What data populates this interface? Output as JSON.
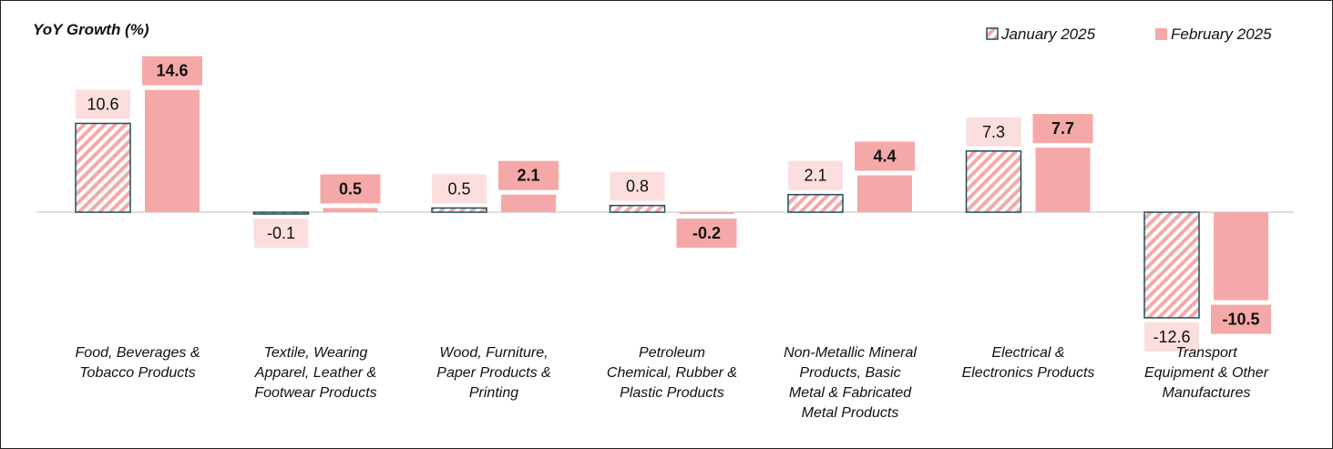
{
  "chart_data": {
    "type": "bar",
    "ylabel": "YoY Growth (%)",
    "title": "",
    "legend_position": "top-right",
    "categories": [
      [
        "Food, Beverages &",
        "Tobacco Products"
      ],
      [
        "Textile, Wearing",
        "Apparel, Leather &",
        "Footwear Products"
      ],
      [
        "Wood, Furniture,",
        "Paper Products &",
        "Printing"
      ],
      [
        "Petroleum",
        "Chemical, Rubber &",
        "Plastic Products"
      ],
      [
        "Non-Metallic Mineral",
        "Products, Basic",
        "Metal & Fabricated",
        "Metal Products"
      ],
      [
        "Electrical &",
        "Electronics Products"
      ],
      [
        "Transport",
        "Equipment & Other",
        "Manufactures"
      ]
    ],
    "series": [
      {
        "name": "January 2025",
        "values": [
          10.6,
          -0.1,
          0.5,
          0.8,
          2.1,
          7.3,
          -12.6
        ],
        "labels": [
          "10.6",
          "-0.1",
          "0.5",
          "0.8",
          "2.1",
          "7.3",
          "-12.6"
        ]
      },
      {
        "name": "February 2025",
        "values": [
          14.6,
          0.5,
          2.1,
          -0.2,
          4.4,
          7.7,
          -10.5
        ],
        "labels": [
          "14.6",
          "0.5",
          "2.1",
          "-0.2",
          "4.4",
          "7.7",
          "-10.5"
        ]
      }
    ],
    "colors": {
      "jan_fill": "#f4a9a8",
      "jan_hatch_bg": "#ffffff",
      "jan_border": "#1f4e5a",
      "feb_fill": "#f4a9a8",
      "jan_label_bg": "#fcdede",
      "feb_label_bg": "#f4a9a8",
      "axis": "#bfbfbf"
    },
    "grid": false
  }
}
